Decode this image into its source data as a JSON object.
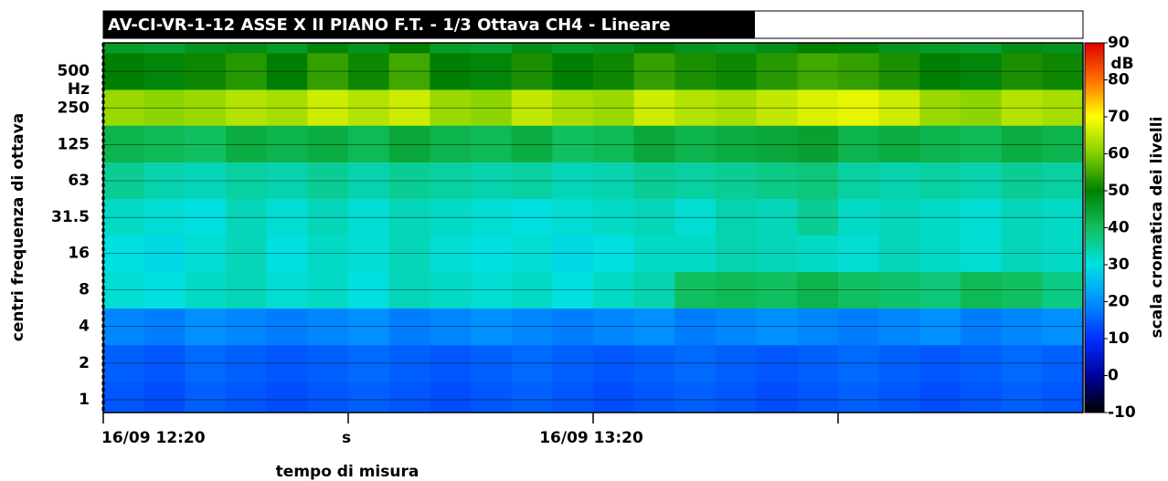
{
  "chart_data": {
    "type": "spectrogram",
    "title": "AV-CI-VR-1-12 ASSE X II PIANO F.T. - 1/3 Ottava CH4 - Lineare",
    "x_label": "tempo di misura",
    "y_label": "centri frequenza di ottava",
    "y_unit": "Hz",
    "colorbar_label": "scala cromatica dei livelli",
    "colorbar_unit": "dB",
    "xlim": [
      0,
      120
    ],
    "xticks": [
      {
        "value": 0,
        "label": "16/09 12:20"
      },
      {
        "value": 30,
        "label": "s"
      },
      {
        "value": 60,
        "label": "16/09 13:20"
      }
    ],
    "xminorticks": [
      90
    ],
    "ylim": [
      0.785,
      856
    ],
    "log_y": true,
    "yticks": [
      1,
      2,
      4,
      8,
      16,
      31.5,
      63,
      125,
      250,
      500
    ],
    "zlim": [
      -10,
      90
    ],
    "zticks": [
      -10,
      0,
      10,
      20,
      30,
      40,
      50,
      60,
      70,
      80,
      90
    ],
    "colormap": [
      "#000000",
      "#0000a0",
      "#0030ff",
      "#0090ff",
      "#00e0e0",
      "#10c060",
      "#008000",
      "#80d000",
      "#ffff00",
      "#ff7000",
      "#e00000"
    ],
    "xbins": [
      0,
      5,
      10,
      15,
      20,
      25,
      30,
      35,
      40,
      45,
      50,
      55,
      60,
      65,
      70,
      75,
      80,
      85,
      90,
      95,
      100,
      105,
      110,
      115,
      120
    ],
    "ybins": [
      0.785,
      1.41,
      2.83,
      5.66,
      11.3,
      22.6,
      45,
      90,
      180,
      355,
      710,
      856
    ],
    "z": [
      [
        14,
        13,
        15,
        14,
        13,
        14,
        15,
        14,
        13,
        14,
        15,
        14,
        13,
        14,
        15,
        14,
        13,
        14,
        15,
        14,
        13,
        14,
        15,
        14
      ],
      [
        15,
        14,
        16,
        15,
        14,
        15,
        16,
        15,
        14,
        15,
        16,
        15,
        14,
        15,
        16,
        15,
        14,
        15,
        16,
        15,
        14,
        15,
        16,
        15
      ],
      [
        19,
        18,
        20,
        19,
        18,
        19,
        20,
        18,
        19,
        20,
        19,
        18,
        19,
        20,
        18,
        19,
        20,
        19,
        18,
        19,
        20,
        18,
        19,
        20
      ],
      [
        31,
        30,
        32,
        33,
        31,
        32,
        30,
        33,
        32,
        31,
        32,
        30,
        32,
        34,
        40,
        41,
        40,
        42,
        40,
        39,
        38,
        41,
        40,
        37
      ],
      [
        30,
        29,
        31,
        33,
        30,
        32,
        31,
        33,
        31,
        30,
        31,
        29,
        30,
        32,
        32,
        34,
        33,
        32,
        31,
        33,
        32,
        31,
        33,
        32
      ],
      [
        32,
        31,
        30,
        33,
        31,
        33,
        31,
        33,
        32,
        31,
        30,
        31,
        32,
        33,
        31,
        34,
        33,
        36,
        32,
        33,
        32,
        31,
        33,
        32
      ],
      [
        36,
        34,
        33,
        35,
        34,
        36,
        34,
        36,
        35,
        34,
        35,
        33,
        34,
        36,
        35,
        36,
        37,
        38,
        35,
        34,
        35,
        34,
        36,
        35
      ],
      [
        42,
        41,
        40,
        43,
        42,
        43,
        41,
        44,
        42,
        41,
        43,
        40,
        41,
        44,
        42,
        43,
        44,
        45,
        42,
        43,
        42,
        41,
        43,
        42
      ],
      [
        62,
        61,
        62,
        64,
        63,
        66,
        64,
        66,
        62,
        61,
        65,
        63,
        62,
        66,
        64,
        63,
        65,
        67,
        68,
        66,
        62,
        61,
        64,
        63
      ],
      [
        50,
        49,
        51,
        53,
        50,
        54,
        51,
        55,
        50,
        49,
        52,
        50,
        51,
        54,
        52,
        51,
        53,
        55,
        54,
        52,
        50,
        49,
        52,
        51
      ],
      [
        46,
        45,
        47,
        48,
        46,
        49,
        47,
        50,
        46,
        45,
        48,
        46,
        47,
        49,
        47,
        46,
        48,
        50,
        49,
        47,
        46,
        45,
        48,
        47
      ]
    ]
  }
}
